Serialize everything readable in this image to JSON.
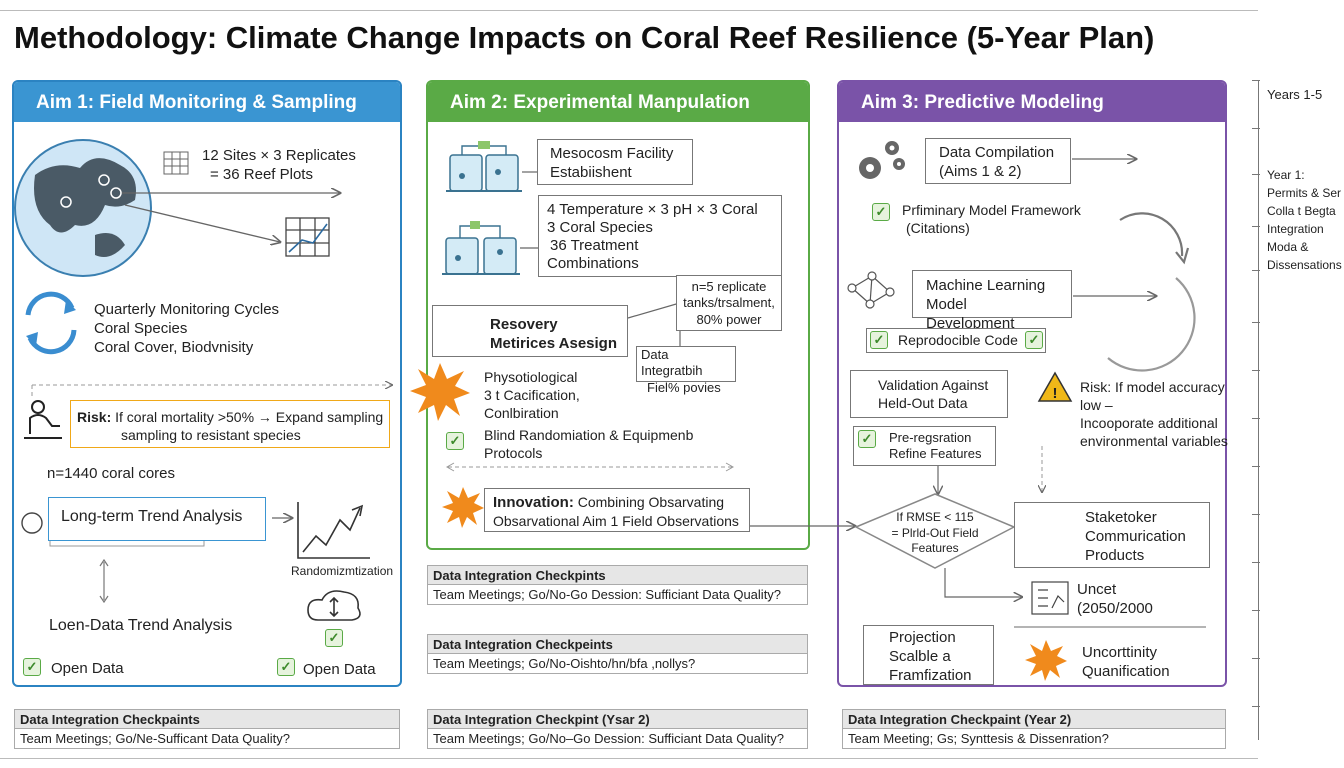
{
  "title": "Methodology: Climate Change Impacts on Coral Reef Resilience (5-Year Plan)",
  "colors": {
    "aim1": "#3a95d2",
    "aim2": "#5aaa46",
    "aim3": "#7a53a8",
    "risk": "#f0a818",
    "burst": "#f08a1c"
  },
  "aim1": {
    "header": "Aim 1: Field Monitoring & Sampling",
    "sites": [
      "12 Sites × 3 Replicates",
      "= 36 Reef Plots"
    ],
    "cycles": [
      "Quarterly Monitoring Cycles",
      "Coral Species",
      "Coral Cover, Biodvnisity"
    ],
    "risk_label": "Risk:",
    "risk_text": "If coral mortality >50% → Expand sampling",
    "risk_text2": "sampling to resistant species",
    "cores": "n=1440 coral cores",
    "trend": "Long-term Trend Analysis",
    "random": "Randomizmtization",
    "loen": "Loen-Data Trend Analysis",
    "open1": "Open Data",
    "open2": "Open Data"
  },
  "aim2": {
    "header": "Aim 2: Experimental Manpulation",
    "facility": [
      "Mesocosm Facility",
      "Estabiishent"
    ],
    "design": [
      "4 Temperature × 3 pH × 3 Coral",
      "3 Coral Species",
      "36 Treatment",
      "Combinations"
    ],
    "replicate": [
      "n=5 replicate",
      "tanks/trsalment,",
      "80% power"
    ],
    "recovery": [
      "Resovery",
      "Metirices Asesign"
    ],
    "integ": [
      "Data Integratbih",
      "Fiel% povies"
    ],
    "physio": [
      "Physotiological",
      "3 t Cacification,",
      "Conlbiration"
    ],
    "blind": [
      "Blind Randomiation & Equipmenb",
      "Protocols"
    ],
    "innov_label": "Innovation:",
    "innov_text": "Combining Obsarvating",
    "innov_text2": "Obsarvational Aim 1 Field Observations"
  },
  "aim3": {
    "header": "Aim 3: Predictive Modeling",
    "compile": [
      "Data Compilation",
      "(Aims 1 & 2)"
    ],
    "prelim": [
      "Prfiminary Model Framework",
      "(Citations)"
    ],
    "ml": [
      "Machine Learning",
      "Model Development"
    ],
    "repro": "Reprodocible Code",
    "validation": [
      "Validation Against",
      "Held-Out Data"
    ],
    "risk": [
      "Risk: If model accuracy",
      "low –",
      "Incooporate additional",
      "environmental variables"
    ],
    "prereg": [
      "Pre-regsration",
      "Refine Features"
    ],
    "diamond": [
      "If RMSE < 115",
      "= Plrld-Out Field",
      "Features"
    ],
    "stake": [
      "Staketoker",
      "Commurication",
      "Products"
    ],
    "uncert": [
      "Uncet",
      "(2050/2000"
    ],
    "projection": [
      "Projection",
      "Scalble a",
      "Framfization"
    ],
    "uncertainty": [
      "Uncorttinity",
      "Quanification"
    ]
  },
  "checkpoints": [
    {
      "title": "Data Integration Checkpints",
      "body": "Team Meetings; Go/No-Go Dession: Sufficiant Data Quality?"
    },
    {
      "title": "Data Integration Checkpeints",
      "body": "Team Meetings; Go/No-Oishto/hn/bfa ,nollys?"
    },
    {
      "title": "Data Integration Checkpaints",
      "body": "Team Meetings; Go/Ne-Sufficant Data Quality?"
    },
    {
      "title": "Data Integration Checkpint (Ysar 2)",
      "body": "Team Meetings; Go/No–Go Dession: Sufficiant Data Quality?"
    },
    {
      "title": "Data Integration Checkpaint (Year 2)",
      "body": "Team Meeting; Gs; Synttesis & Dissenration?"
    }
  ],
  "timeline": {
    "years": "Years 1-5",
    "year1": [
      "Year 1:",
      "Permits & Ser",
      "Colla t Begta",
      "Integration",
      "Moda  &",
      "Dissensations"
    ]
  }
}
